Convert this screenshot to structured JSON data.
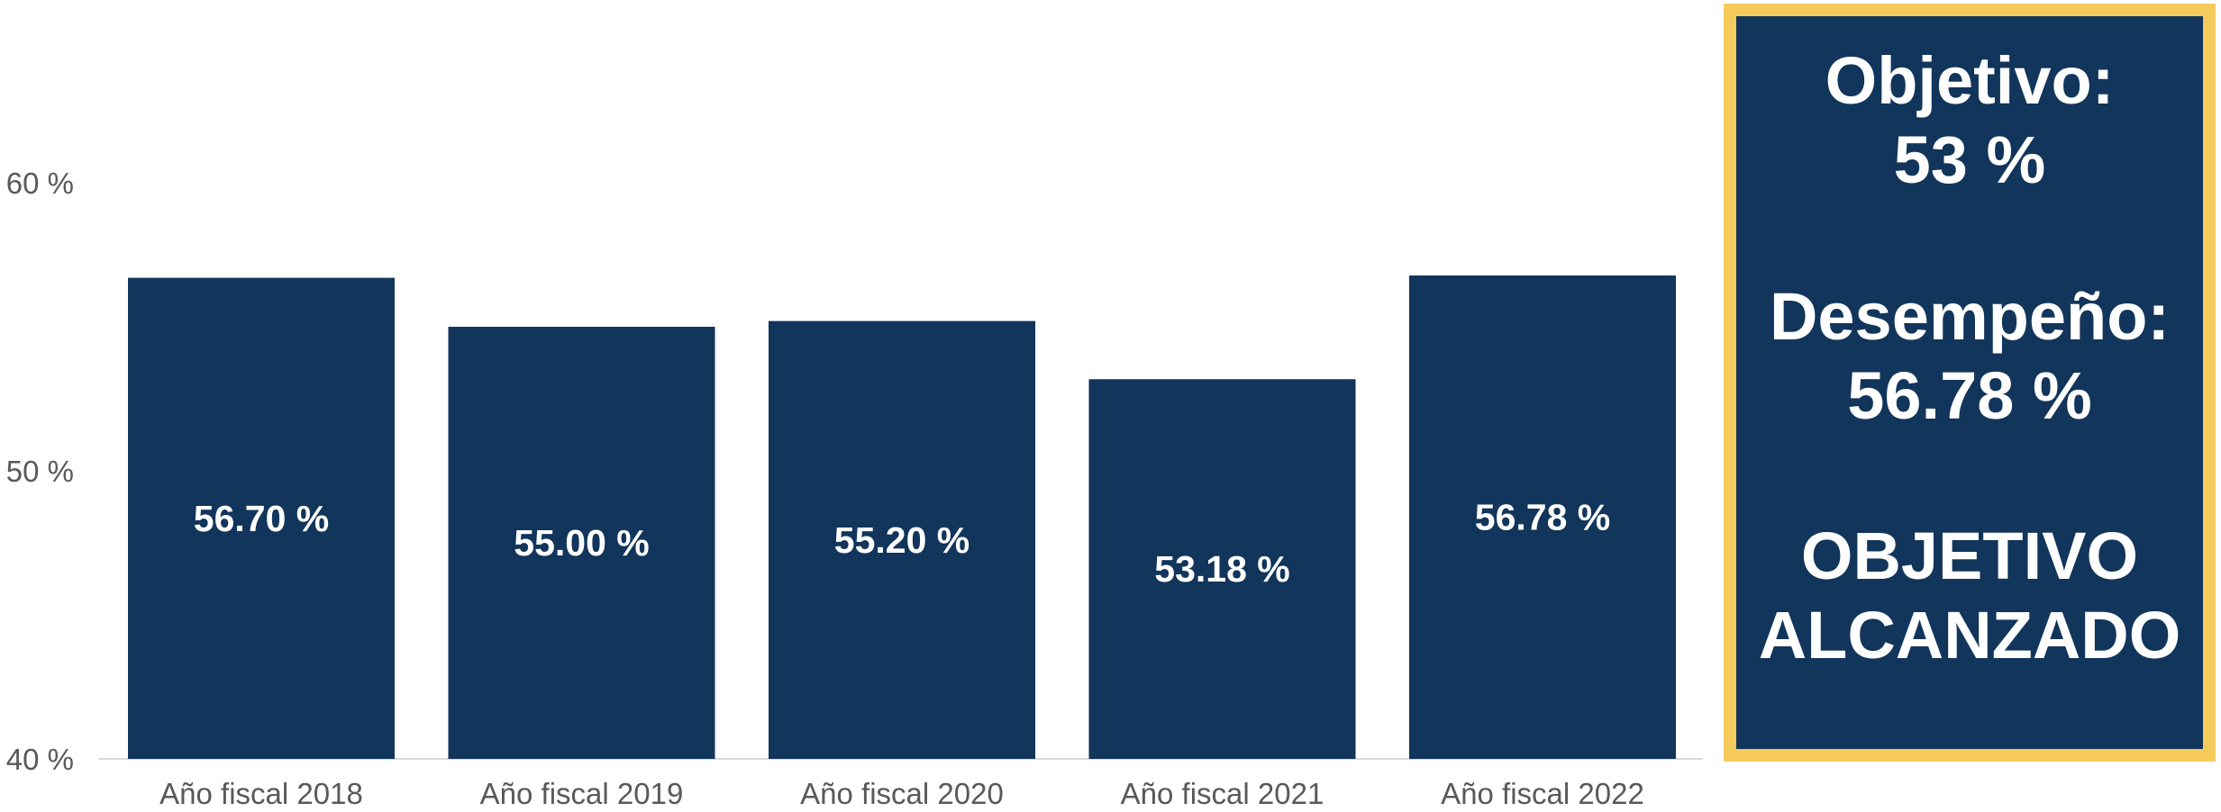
{
  "chart_data": {
    "type": "bar",
    "categories": [
      "Año fiscal 2018",
      "Año fiscal 2019",
      "Año fiscal 2020",
      "Año fiscal 2021",
      "Año fiscal 2022"
    ],
    "values": [
      56.7,
      55.0,
      55.2,
      53.18,
      56.78
    ],
    "data_labels": [
      "56.70 %",
      "55.00 %",
      "55.20 %",
      "53.18 %",
      "56.78 %"
    ],
    "y_ticks": [
      {
        "value": 40,
        "label": "40 %"
      },
      {
        "value": 50,
        "label": "50 %"
      },
      {
        "value": 60,
        "label": "60 %"
      }
    ],
    "ylim": [
      40,
      65
    ],
    "grid": false,
    "bar_color": "#12355b"
  },
  "callout": {
    "goal_label": "Objetivo:",
    "goal_value": "53 %",
    "performance_label": "Desempeño:",
    "performance_value": "56.78 %",
    "status_line1": "OBJETIVO",
    "status_line2": "ALCANZADO",
    "background_color": "#12355b",
    "border_color": "#f5cb5c"
  }
}
